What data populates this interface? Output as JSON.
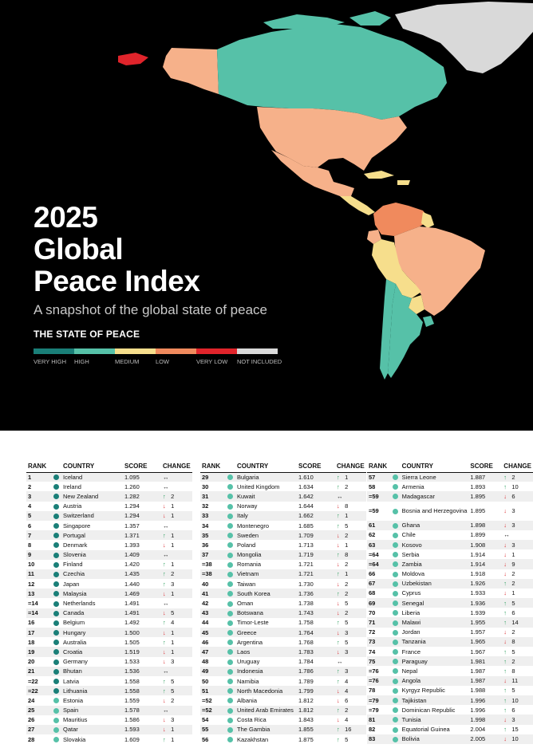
{
  "hero": {
    "title_line1": "2025",
    "title_line2": "Global",
    "title_line3": "Peace Index",
    "subtitle": "A snapshot of the global state of peace",
    "state_heading": "THE STATE OF PEACE"
  },
  "legend": [
    {
      "label": "VERY HIGH",
      "color": "#1a7f78"
    },
    {
      "label": "HIGH",
      "color": "#56c1a8"
    },
    {
      "label": "MEDIUM",
      "color": "#f6de8c"
    },
    {
      "label": "LOW",
      "color": "#f08a5d"
    },
    {
      "label": "VERY LOW",
      "color": "#e0242b"
    },
    {
      "label": "NOT INCLUDED",
      "color": "#d9d9d9"
    }
  ],
  "map": {
    "regions": [
      {
        "name": "Canada",
        "category": "HIGH"
      },
      {
        "name": "United States",
        "category": "LOW"
      },
      {
        "name": "Mexico",
        "category": "LOW"
      },
      {
        "name": "Greenland",
        "category": "NOT INCLUDED"
      },
      {
        "name": "Russia (far east)",
        "category": "VERY LOW"
      },
      {
        "name": "Central America",
        "category": "MEDIUM"
      },
      {
        "name": "Colombia",
        "category": "LOW"
      },
      {
        "name": "Venezuela",
        "category": "LOW"
      },
      {
        "name": "Brazil",
        "category": "LOW"
      },
      {
        "name": "Peru",
        "category": "MEDIUM"
      },
      {
        "name": "Bolivia",
        "category": "MEDIUM"
      },
      {
        "name": "Chile",
        "category": "HIGH"
      },
      {
        "name": "Argentina",
        "category": "HIGH"
      },
      {
        "name": "Uruguay",
        "category": "HIGH"
      },
      {
        "name": "Paraguay",
        "category": "MEDIUM"
      },
      {
        "name": "Ecuador",
        "category": "LOW"
      },
      {
        "name": "Guyana",
        "category": "MEDIUM"
      }
    ]
  },
  "headers": {
    "rank": "RANK",
    "country": "COUNTRY",
    "score": "SCORE",
    "change": "CHANGE"
  },
  "tables": [
    [
      {
        "rank": "1",
        "country": "Iceland",
        "score": "1.095",
        "dir": "same",
        "change": ""
      },
      {
        "rank": "2",
        "country": "Ireland",
        "score": "1.260",
        "dir": "same",
        "change": ""
      },
      {
        "rank": "3",
        "country": "New Zealand",
        "score": "1.282",
        "dir": "up",
        "change": "2"
      },
      {
        "rank": "4",
        "country": "Austria",
        "score": "1.294",
        "dir": "down",
        "change": "1"
      },
      {
        "rank": "5",
        "country": "Switzerland",
        "score": "1.294",
        "dir": "down",
        "change": "1"
      },
      {
        "rank": "6",
        "country": "Singapore",
        "score": "1.357",
        "dir": "same",
        "change": ""
      },
      {
        "rank": "7",
        "country": "Portugal",
        "score": "1.371",
        "dir": "up",
        "change": "1"
      },
      {
        "rank": "8",
        "country": "Denmark",
        "score": "1.393",
        "dir": "down",
        "change": "1"
      },
      {
        "rank": "9",
        "country": "Slovenia",
        "score": "1.409",
        "dir": "same",
        "change": ""
      },
      {
        "rank": "10",
        "country": "Finland",
        "score": "1.420",
        "dir": "up",
        "change": "1"
      },
      {
        "rank": "11",
        "country": "Czechia",
        "score": "1.435",
        "dir": "up",
        "change": "2"
      },
      {
        "rank": "12",
        "country": "Japan",
        "score": "1.440",
        "dir": "up",
        "change": "3"
      },
      {
        "rank": "13",
        "country": "Malaysia",
        "score": "1.469",
        "dir": "down",
        "change": "1"
      },
      {
        "rank": "=14",
        "country": "Netherlands",
        "score": "1.491",
        "dir": "same",
        "change": ""
      },
      {
        "rank": "=14",
        "country": "Canada",
        "score": "1.491",
        "dir": "down",
        "change": "5"
      },
      {
        "rank": "16",
        "country": "Belgium",
        "score": "1.492",
        "dir": "up",
        "change": "4"
      },
      {
        "rank": "17",
        "country": "Hungary",
        "score": "1.500",
        "dir": "down",
        "change": "1"
      },
      {
        "rank": "18",
        "country": "Australia",
        "score": "1.505",
        "dir": "up",
        "change": "1"
      },
      {
        "rank": "19",
        "country": "Croatia",
        "score": "1.519",
        "dir": "down",
        "change": "1"
      },
      {
        "rank": "20",
        "country": "Germany",
        "score": "1.533",
        "dir": "down",
        "change": "3"
      },
      {
        "rank": "21",
        "country": "Bhutan",
        "score": "1.536",
        "dir": "same",
        "change": ""
      },
      {
        "rank": "=22",
        "country": "Latvia",
        "score": "1.558",
        "dir": "up",
        "change": "5"
      },
      {
        "rank": "=22",
        "country": "Lithuania",
        "score": "1.558",
        "dir": "up",
        "change": "5"
      },
      {
        "rank": "24",
        "country": "Estonia",
        "score": "1.559",
        "dir": "down",
        "change": "2"
      },
      {
        "rank": "25",
        "country": "Spain",
        "score": "1.578",
        "dir": "same",
        "change": ""
      },
      {
        "rank": "26",
        "country": "Mauritius",
        "score": "1.586",
        "dir": "down",
        "change": "3"
      },
      {
        "rank": "27",
        "country": "Qatar",
        "score": "1.593",
        "dir": "down",
        "change": "1"
      },
      {
        "rank": "28",
        "country": "Slovakia",
        "score": "1.609",
        "dir": "up",
        "change": "1"
      }
    ],
    [
      {
        "rank": "29",
        "country": "Bulgaria",
        "score": "1.610",
        "dir": "up",
        "change": "1"
      },
      {
        "rank": "30",
        "country": "United Kingdom",
        "score": "1.634",
        "dir": "up",
        "change": "2"
      },
      {
        "rank": "31",
        "country": "Kuwait",
        "score": "1.642",
        "dir": "same",
        "change": ""
      },
      {
        "rank": "32",
        "country": "Norway",
        "score": "1.644",
        "dir": "down",
        "change": "8"
      },
      {
        "rank": "33",
        "country": "Italy",
        "score": "1.662",
        "dir": "up",
        "change": "1"
      },
      {
        "rank": "34",
        "country": "Montenegro",
        "score": "1.685",
        "dir": "up",
        "change": "5"
      },
      {
        "rank": "35",
        "country": "Sweden",
        "score": "1.709",
        "dir": "down",
        "change": "2"
      },
      {
        "rank": "36",
        "country": "Poland",
        "score": "1.713",
        "dir": "down",
        "change": "1"
      },
      {
        "rank": "37",
        "country": "Mongolia",
        "score": "1.719",
        "dir": "up",
        "change": "8"
      },
      {
        "rank": "=38",
        "country": "Romania",
        "score": "1.721",
        "dir": "down",
        "change": "2"
      },
      {
        "rank": "=38",
        "country": "Vietnam",
        "score": "1.721",
        "dir": "up",
        "change": "1"
      },
      {
        "rank": "40",
        "country": "Taiwan",
        "score": "1.730",
        "dir": "down",
        "change": "2"
      },
      {
        "rank": "41",
        "country": "South Korea",
        "score": "1.736",
        "dir": "up",
        "change": "2"
      },
      {
        "rank": "42",
        "country": "Oman",
        "score": "1.738",
        "dir": "down",
        "change": "5"
      },
      {
        "rank": "43",
        "country": "Botswana",
        "score": "1.743",
        "dir": "down",
        "change": "2"
      },
      {
        "rank": "44",
        "country": "Timor-Leste",
        "score": "1.758",
        "dir": "up",
        "change": "5"
      },
      {
        "rank": "45",
        "country": "Greece",
        "score": "1.764",
        "dir": "down",
        "change": "3"
      },
      {
        "rank": "46",
        "country": "Argentina",
        "score": "1.768",
        "dir": "up",
        "change": "5"
      },
      {
        "rank": "47",
        "country": "Laos",
        "score": "1.783",
        "dir": "down",
        "change": "3"
      },
      {
        "rank": "48",
        "country": "Uruguay",
        "score": "1.784",
        "dir": "same",
        "change": ""
      },
      {
        "rank": "49",
        "country": "Indonesia",
        "score": "1.786",
        "dir": "up",
        "change": "3"
      },
      {
        "rank": "50",
        "country": "Namibia",
        "score": "1.789",
        "dir": "up",
        "change": "4"
      },
      {
        "rank": "51",
        "country": "North Macedonia",
        "score": "1.799",
        "dir": "down",
        "change": "4"
      },
      {
        "rank": "=52",
        "country": "Albania",
        "score": "1.812",
        "dir": "down",
        "change": "6"
      },
      {
        "rank": "=52",
        "country": "United Arab Emirates",
        "score": "1.812",
        "dir": "up",
        "change": "2"
      },
      {
        "rank": "54",
        "country": "Costa Rica",
        "score": "1.843",
        "dir": "down",
        "change": "4"
      },
      {
        "rank": "55",
        "country": "The Gambia",
        "score": "1.855",
        "dir": "up",
        "change": "16"
      },
      {
        "rank": "56",
        "country": "Kazakhstan",
        "score": "1.875",
        "dir": "up",
        "change": "5"
      }
    ],
    [
      {
        "rank": "57",
        "country": "Sierra Leone",
        "score": "1.887",
        "dir": "up",
        "change": "2"
      },
      {
        "rank": "58",
        "country": "Armenia",
        "score": "1.893",
        "dir": "up",
        "change": "10"
      },
      {
        "rank": "=59",
        "country": "Madagascar",
        "score": "1.895",
        "dir": "down",
        "change": "6"
      },
      {
        "rank": "=59",
        "country": "Bosnia and Herzegovina",
        "score": "1.895",
        "dir": "down",
        "change": "3",
        "tall": true
      },
      {
        "rank": "61",
        "country": "Ghana",
        "score": "1.898",
        "dir": "down",
        "change": "3"
      },
      {
        "rank": "62",
        "country": "Chile",
        "score": "1.899",
        "dir": "same",
        "change": ""
      },
      {
        "rank": "63",
        "country": "Kosovo",
        "score": "1.908",
        "dir": "down",
        "change": "3"
      },
      {
        "rank": "=64",
        "country": "Serbia",
        "score": "1.914",
        "dir": "down",
        "change": "1"
      },
      {
        "rank": "=64",
        "country": "Zambia",
        "score": "1.914",
        "dir": "down",
        "change": "9"
      },
      {
        "rank": "66",
        "country": "Moldova",
        "score": "1.918",
        "dir": "down",
        "change": "2"
      },
      {
        "rank": "67",
        "country": "Uzbekistan",
        "score": "1.926",
        "dir": "up",
        "change": "2"
      },
      {
        "rank": "68",
        "country": "Cyprus",
        "score": "1.933",
        "dir": "down",
        "change": "1"
      },
      {
        "rank": "69",
        "country": "Senegal",
        "score": "1.936",
        "dir": "up",
        "change": "5"
      },
      {
        "rank": "70",
        "country": "Liberia",
        "score": "1.939",
        "dir": "up",
        "change": "6"
      },
      {
        "rank": "71",
        "country": "Malawi",
        "score": "1.955",
        "dir": "up",
        "change": "14"
      },
      {
        "rank": "72",
        "country": "Jordan",
        "score": "1.957",
        "dir": "down",
        "change": "2"
      },
      {
        "rank": "73",
        "country": "Tanzania",
        "score": "1.965",
        "dir": "down",
        "change": "8"
      },
      {
        "rank": "74",
        "country": "France",
        "score": "1.967",
        "dir": "up",
        "change": "5"
      },
      {
        "rank": "75",
        "country": "Paraguay",
        "score": "1.981",
        "dir": "up",
        "change": "2"
      },
      {
        "rank": "=76",
        "country": "Nepal",
        "score": "1.987",
        "dir": "up",
        "change": "8"
      },
      {
        "rank": "=76",
        "country": "Angola",
        "score": "1.987",
        "dir": "down",
        "change": "11"
      },
      {
        "rank": "78",
        "country": "Kyrgyz Republic",
        "score": "1.988",
        "dir": "up",
        "change": "5"
      },
      {
        "rank": "=79",
        "country": "Tajikistan",
        "score": "1.996",
        "dir": "up",
        "change": "10"
      },
      {
        "rank": "=79",
        "country": "Dominican Republic",
        "score": "1.996",
        "dir": "up",
        "change": "6"
      },
      {
        "rank": "81",
        "country": "Tunisia",
        "score": "1.998",
        "dir": "down",
        "change": "3"
      },
      {
        "rank": "82",
        "country": "Equatorial Guinea",
        "score": "2.004",
        "dir": "up",
        "change": "15"
      },
      {
        "rank": "83",
        "country": "Bolivia",
        "score": "2.005",
        "dir": "down",
        "change": "10"
      }
    ]
  ]
}
